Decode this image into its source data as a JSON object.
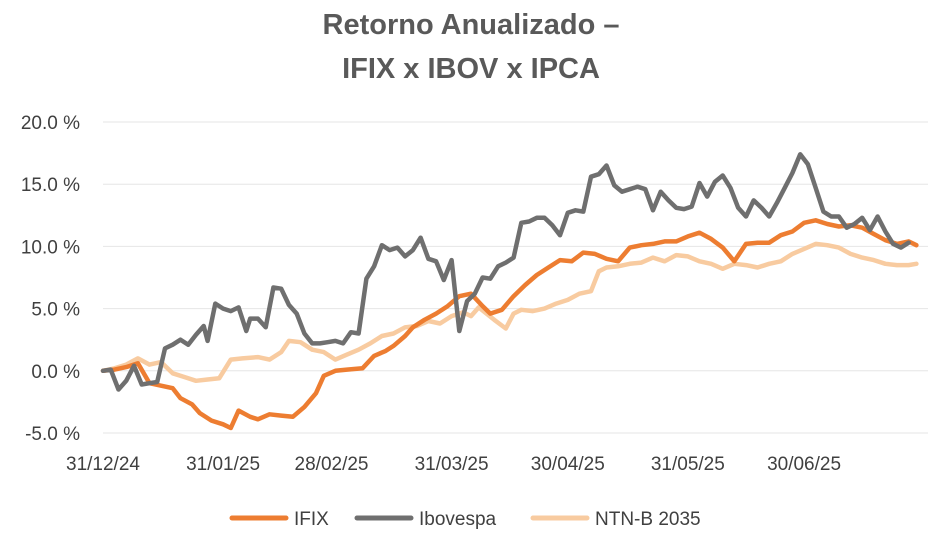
{
  "chart_data": {
    "type": "line",
    "title": "Retorno Anualizado –",
    "subtitle": "IFIX x IBOV x IPCA",
    "xlabel": "",
    "ylabel": "",
    "x_tick_labels": [
      "31/12/24",
      "31/01/25",
      "28/02/25",
      "31/03/25",
      "30/04/25",
      "31/05/25",
      "30/06/25"
    ],
    "x_tick_days": [
      0,
      31,
      59,
      90,
      120,
      151,
      181
    ],
    "x_range_days": [
      0,
      213
    ],
    "y_tick_labels": [
      "20.0 %",
      "15.0 %",
      "10.0 %",
      "5.0 %",
      "0.0 %",
      "-5.0 %"
    ],
    "y_tick_values": [
      20,
      15,
      10,
      5,
      0,
      -5
    ],
    "ylim": [
      -5,
      20
    ],
    "grid": true,
    "legend_position": "bottom",
    "series": [
      {
        "name": "IFIX",
        "color": "#ED7D31",
        "points": [
          [
            0,
            0
          ],
          [
            3,
            0.1
          ],
          [
            6,
            0.3
          ],
          [
            9,
            0.6
          ],
          [
            12,
            -1
          ],
          [
            15,
            -1.2
          ],
          [
            18,
            -1.4
          ],
          [
            20,
            -2.2
          ],
          [
            23,
            -2.7
          ],
          [
            25,
            -3.4
          ],
          [
            28,
            -4
          ],
          [
            31,
            -4.3
          ],
          [
            33,
            -4.6
          ],
          [
            35,
            -3.2
          ],
          [
            38,
            -3.7
          ],
          [
            40,
            -3.9
          ],
          [
            43,
            -3.5
          ],
          [
            46,
            -3.6
          ],
          [
            49,
            -3.7
          ],
          [
            52,
            -2.9
          ],
          [
            55,
            -1.8
          ],
          [
            57,
            -0.4
          ],
          [
            60,
            0
          ],
          [
            63,
            0.1
          ],
          [
            67,
            0.2
          ],
          [
            70,
            1.2
          ],
          [
            73,
            1.6
          ],
          [
            75,
            2
          ],
          [
            78,
            2.8
          ],
          [
            80,
            3.5
          ],
          [
            83,
            4.1
          ],
          [
            86,
            4.6
          ],
          [
            89,
            5.2
          ],
          [
            92,
            6
          ],
          [
            95,
            6.2
          ],
          [
            98,
            5.2
          ],
          [
            100,
            4.6
          ],
          [
            103,
            4.9
          ],
          [
            106,
            6
          ],
          [
            109,
            6.9
          ],
          [
            112,
            7.7
          ],
          [
            115,
            8.3
          ],
          [
            118,
            8.9
          ],
          [
            121,
            8.8
          ],
          [
            124,
            9.5
          ],
          [
            127,
            9.4
          ],
          [
            130,
            9
          ],
          [
            133,
            8.8
          ],
          [
            136,
            9.9
          ],
          [
            139,
            10.1
          ],
          [
            142,
            10.2
          ],
          [
            145,
            10.4
          ],
          [
            148,
            10.4
          ],
          [
            151,
            10.8
          ],
          [
            154,
            11.1
          ],
          [
            157,
            10.6
          ],
          [
            160,
            9.9
          ],
          [
            163,
            8.8
          ],
          [
            166,
            10.2
          ],
          [
            169,
            10.3
          ],
          [
            172,
            10.3
          ],
          [
            175,
            10.9
          ],
          [
            178,
            11.2
          ],
          [
            181,
            11.9
          ],
          [
            184,
            12.1
          ],
          [
            187,
            11.8
          ],
          [
            190,
            11.6
          ],
          [
            193,
            11.7
          ],
          [
            196,
            11.5
          ],
          [
            199,
            11
          ],
          [
            202,
            10.5
          ],
          [
            205,
            10.2
          ],
          [
            208,
            10.4
          ],
          [
            210,
            10.1
          ]
        ]
      },
      {
        "name": "Ibovespa",
        "color": "#6F6F6F",
        "points": [
          [
            0,
            0
          ],
          [
            2,
            0.1
          ],
          [
            4,
            -1.5
          ],
          [
            6,
            -0.8
          ],
          [
            8,
            0.4
          ],
          [
            10,
            -1.1
          ],
          [
            12,
            -1
          ],
          [
            14,
            -0.9
          ],
          [
            16,
            1.8
          ],
          [
            18,
            2.1
          ],
          [
            20,
            2.5
          ],
          [
            22,
            2.1
          ],
          [
            24,
            2.9
          ],
          [
            26,
            3.6
          ],
          [
            27,
            2.4
          ],
          [
            29,
            5.4
          ],
          [
            31,
            5
          ],
          [
            33,
            4.8
          ],
          [
            35,
            5.1
          ],
          [
            37,
            3.2
          ],
          [
            38,
            4.2
          ],
          [
            40,
            4.2
          ],
          [
            42,
            3.5
          ],
          [
            44,
            6.7
          ],
          [
            46,
            6.6
          ],
          [
            48,
            5.3
          ],
          [
            50,
            4.6
          ],
          [
            52,
            3
          ],
          [
            54,
            2.2
          ],
          [
            56,
            2.2
          ],
          [
            58,
            2.3
          ],
          [
            60,
            2.4
          ],
          [
            62,
            2.2
          ],
          [
            64,
            3.1
          ],
          [
            66,
            3
          ],
          [
            68,
            7.4
          ],
          [
            70,
            8.4
          ],
          [
            72,
            10.1
          ],
          [
            74,
            9.7
          ],
          [
            76,
            9.9
          ],
          [
            78,
            9.2
          ],
          [
            80,
            9.7
          ],
          [
            82,
            10.7
          ],
          [
            84,
            9
          ],
          [
            86,
            8.8
          ],
          [
            88,
            7.3
          ],
          [
            90,
            8.9
          ],
          [
            92,
            3.2
          ],
          [
            94,
            5.6
          ],
          [
            96,
            6.2
          ],
          [
            98,
            7.5
          ],
          [
            100,
            7.4
          ],
          [
            102,
            8.4
          ],
          [
            104,
            8.7
          ],
          [
            106,
            9.1
          ],
          [
            108,
            11.9
          ],
          [
            110,
            12
          ],
          [
            112,
            12.3
          ],
          [
            114,
            12.3
          ],
          [
            116,
            11.7
          ],
          [
            118,
            10.9
          ],
          [
            120,
            12.7
          ],
          [
            122,
            12.9
          ],
          [
            124,
            12.8
          ],
          [
            126,
            15.6
          ],
          [
            128,
            15.8
          ],
          [
            130,
            16.5
          ],
          [
            132,
            14.9
          ],
          [
            134,
            14.4
          ],
          [
            136,
            14.6
          ],
          [
            138,
            14.8
          ],
          [
            140,
            14.6
          ],
          [
            142,
            12.9
          ],
          [
            144,
            14.4
          ],
          [
            146,
            13.7
          ],
          [
            148,
            13.1
          ],
          [
            150,
            13
          ],
          [
            152,
            13.2
          ],
          [
            154,
            15.1
          ],
          [
            156,
            14
          ],
          [
            158,
            15.2
          ],
          [
            160,
            15.7
          ],
          [
            162,
            14.7
          ],
          [
            164,
            13.1
          ],
          [
            166,
            12.4
          ],
          [
            168,
            13.7
          ],
          [
            170,
            13.1
          ],
          [
            172,
            12.4
          ],
          [
            174,
            13.5
          ],
          [
            176,
            14.7
          ],
          [
            178,
            15.9
          ],
          [
            180,
            17.4
          ],
          [
            182,
            16.6
          ],
          [
            184,
            14.7
          ],
          [
            186,
            12.8
          ],
          [
            188,
            12.4
          ],
          [
            190,
            12.4
          ],
          [
            192,
            11.5
          ],
          [
            194,
            11.8
          ],
          [
            196,
            12.3
          ],
          [
            198,
            11.3
          ],
          [
            200,
            12.4
          ],
          [
            202,
            11.2
          ],
          [
            204,
            10.2
          ],
          [
            206,
            9.9
          ],
          [
            208,
            10.3
          ]
        ]
      },
      {
        "name": "NTN-B 2035",
        "color": "#F8CBA0",
        "points": [
          [
            0,
            0
          ],
          [
            3,
            0.2
          ],
          [
            6,
            0.5
          ],
          [
            9,
            1
          ],
          [
            12,
            0.5
          ],
          [
            15,
            0.7
          ],
          [
            18,
            -0.2
          ],
          [
            21,
            -0.5
          ],
          [
            24,
            -0.8
          ],
          [
            27,
            -0.7
          ],
          [
            30,
            -0.6
          ],
          [
            33,
            0.9
          ],
          [
            36,
            1
          ],
          [
            40,
            1.1
          ],
          [
            43,
            0.9
          ],
          [
            46,
            1.5
          ],
          [
            48,
            2.4
          ],
          [
            51,
            2.3
          ],
          [
            54,
            1.7
          ],
          [
            57,
            1.5
          ],
          [
            60,
            0.9
          ],
          [
            63,
            1.3
          ],
          [
            66,
            1.7
          ],
          [
            69,
            2.2
          ],
          [
            72,
            2.8
          ],
          [
            75,
            3
          ],
          [
            78,
            3.5
          ],
          [
            81,
            3.6
          ],
          [
            84,
            4
          ],
          [
            87,
            3.8
          ],
          [
            90,
            4.4
          ],
          [
            93,
            4.7
          ],
          [
            95,
            4.4
          ],
          [
            97,
            5.1
          ],
          [
            99,
            4.6
          ],
          [
            101,
            4.1
          ],
          [
            104,
            3.4
          ],
          [
            106,
            4.6
          ],
          [
            108,
            4.9
          ],
          [
            111,
            4.8
          ],
          [
            114,
            5
          ],
          [
            117,
            5.4
          ],
          [
            120,
            5.7
          ],
          [
            123,
            6.2
          ],
          [
            126,
            6.4
          ],
          [
            128,
            8
          ],
          [
            130,
            8.3
          ],
          [
            133,
            8.4
          ],
          [
            136,
            8.6
          ],
          [
            139,
            8.7
          ],
          [
            142,
            9.1
          ],
          [
            145,
            8.8
          ],
          [
            148,
            9.3
          ],
          [
            151,
            9.2
          ],
          [
            154,
            8.8
          ],
          [
            157,
            8.6
          ],
          [
            160,
            8.2
          ],
          [
            163,
            8.6
          ],
          [
            166,
            8.5
          ],
          [
            169,
            8.3
          ],
          [
            172,
            8.6
          ],
          [
            175,
            8.8
          ],
          [
            178,
            9.4
          ],
          [
            181,
            9.8
          ],
          [
            184,
            10.2
          ],
          [
            187,
            10.1
          ],
          [
            190,
            9.9
          ],
          [
            193,
            9.4
          ],
          [
            196,
            9.1
          ],
          [
            199,
            8.9
          ],
          [
            202,
            8.6
          ],
          [
            205,
            8.5
          ],
          [
            208,
            8.5
          ],
          [
            210,
            8.6
          ]
        ]
      }
    ]
  }
}
